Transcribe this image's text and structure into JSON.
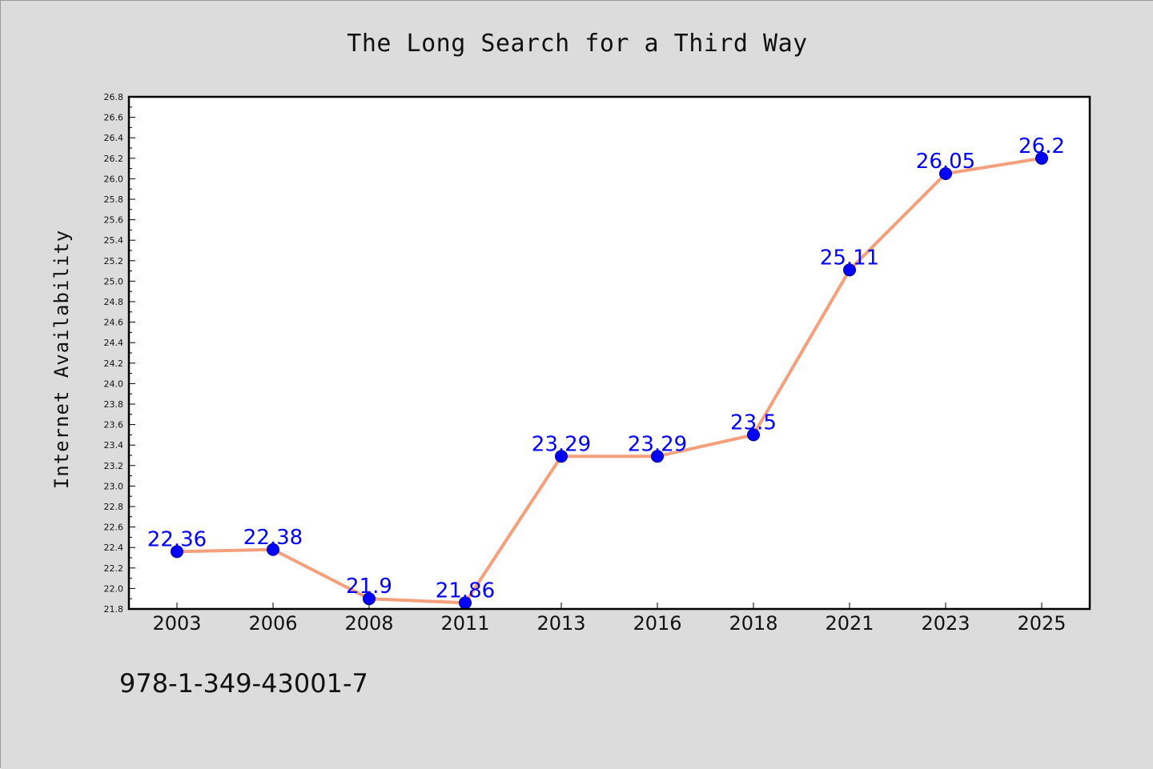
{
  "colors": {
    "page_background": "#dcdcdc",
    "plot_background": "#ffffff",
    "plot_border": "#000000",
    "line": "#f4a07c",
    "marker_fill": "#0000ff",
    "marker_edge": "#000080",
    "data_label": "#0000ff",
    "text": "#111111"
  },
  "chart_data": {
    "type": "line",
    "title": "The Long Search for a Third Way",
    "xlabel": "",
    "ylabel": "Internet Availability",
    "categories": [
      "2003",
      "2006",
      "2008",
      "2011",
      "2013",
      "2016",
      "2018",
      "2021",
      "2023",
      "2025"
    ],
    "series": [
      {
        "values": [
          22.36,
          22.38,
          21.9,
          21.86,
          23.29,
          23.29,
          23.5,
          25.11,
          26.05,
          26.2
        ],
        "data_labels": [
          "22.36",
          "22.38",
          "21.9",
          "21.86",
          "23.29",
          "23.29",
          "23.5",
          "25.11",
          "26.05",
          "26.2"
        ]
      }
    ],
    "ylim": [
      21.8,
      26.8
    ],
    "y_ticks": [
      "21.8",
      "22.0",
      "22.2",
      "22.4",
      "22.6",
      "22.8",
      "23.0",
      "23.2",
      "23.4",
      "23.6",
      "23.8",
      "24.0",
      "24.2",
      "24.4",
      "24.6",
      "24.8",
      "25.0",
      "25.2",
      "25.4",
      "25.6",
      "25.8",
      "26.0",
      "26.2",
      "26.4",
      "26.6",
      "26.8"
    ],
    "grid": false,
    "legend": "none"
  },
  "footnote": "978-1-349-43001-7"
}
